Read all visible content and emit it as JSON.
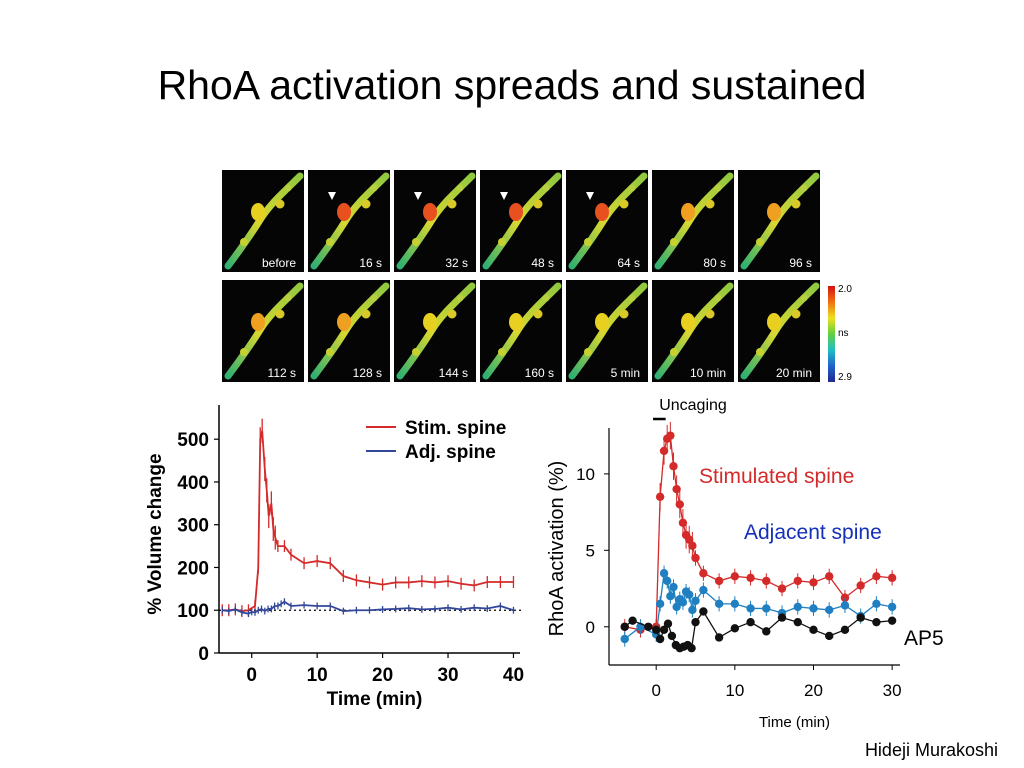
{
  "title": "RhoA activation spreads and sustained",
  "image_panels": {
    "row1": [
      "before",
      "16 s",
      "32 s",
      "48 s",
      "64 s",
      "80 s",
      "96 s"
    ],
    "row2": [
      "112 s",
      "128 s",
      "144 s",
      "160 s",
      "5 min",
      "10 min",
      "20 min"
    ],
    "arrowheads_on": [
      "16 s",
      "32 s",
      "48 s",
      "64 s"
    ],
    "colorbar": {
      "top": "2.0",
      "middle": "ns",
      "bottom": "2.9"
    }
  },
  "chart_data": [
    {
      "type": "line",
      "xlabel": "Time (min)",
      "ylabel": "% Volume change",
      "xlim": [
        -5,
        41
      ],
      "ylim": [
        0,
        580
      ],
      "xticks": [
        0,
        10,
        20,
        30,
        40
      ],
      "yticks": [
        0,
        100,
        200,
        300,
        400,
        500
      ],
      "reference_line": 100,
      "legend_position": "top-right",
      "series": [
        {
          "name": "Stim. spine",
          "color": "#d42a2a",
          "x": [
            -4.5,
            -3.5,
            -2.5,
            -1.5,
            -0.5,
            0.5,
            1.0,
            1.3,
            1.6,
            2.0,
            2.3,
            2.6,
            3.0,
            3.3,
            3.6,
            4.0,
            5.0,
            6.0,
            8.0,
            10.0,
            12.0,
            14.0,
            16.0,
            18.0,
            20.0,
            22.0,
            24.0,
            26.0,
            28.0,
            30.0,
            32.0,
            34.0,
            36.0,
            38.0,
            40.0
          ],
          "y": [
            100,
            100,
            102,
            98,
            100,
            110,
            200,
            500,
            520,
            430,
            380,
            320,
            350,
            290,
            270,
            250,
            250,
            230,
            210,
            215,
            210,
            180,
            170,
            165,
            160,
            165,
            165,
            168,
            165,
            168,
            162,
            158,
            166,
            166,
            166
          ]
        },
        {
          "name": "Adj. spine",
          "color": "#33479a",
          "x": [
            -4.5,
            -3.5,
            -2.5,
            -1.5,
            -0.5,
            0.0,
            0.5,
            1.0,
            1.5,
            2.0,
            2.5,
            3.0,
            3.5,
            4.0,
            4.5,
            5.0,
            6.0,
            8.0,
            10.0,
            12.0,
            14.0,
            16.0,
            18.0,
            20.0,
            22.0,
            24.0,
            26.0,
            28.0,
            30.0,
            32.0,
            34.0,
            36.0,
            38.0,
            40.0
          ],
          "y": [
            100,
            98,
            102,
            95,
            92,
            96,
            95,
            100,
            103,
            98,
            103,
            103,
            110,
            110,
            115,
            120,
            110,
            112,
            110,
            110,
            98,
            100,
            100,
            102,
            103,
            105,
            102,
            103,
            106,
            102,
            106,
            104,
            110,
            100
          ]
        }
      ]
    },
    {
      "type": "line",
      "xlabel": "Time (min)",
      "ylabel": "RhoA activation (%)",
      "xlim": [
        -6,
        31
      ],
      "ylim": [
        -2.5,
        13
      ],
      "xticks": [
        0,
        10,
        20,
        30
      ],
      "yticks": [
        0,
        5,
        10
      ],
      "uncaging_label": "Uncaging",
      "series": [
        {
          "name": "Stimulated spine",
          "color": "#d42a2a",
          "x": [
            -4,
            -2,
            0,
            0.5,
            1.0,
            1.4,
            1.8,
            2.2,
            2.6,
            3.0,
            3.4,
            3.8,
            4.2,
            4.6,
            5.0,
            6.0,
            8.0,
            10.0,
            12.0,
            14.0,
            16.0,
            18.0,
            20.0,
            22.0,
            24.0,
            26.0,
            28.0,
            30.0
          ],
          "y": [
            0,
            -0.2,
            0,
            8.5,
            11.5,
            12.3,
            12.5,
            10.5,
            9.0,
            8.0,
            6.8,
            6.0,
            5.7,
            5.3,
            4.5,
            3.5,
            3.0,
            3.3,
            3.2,
            3.0,
            2.5,
            3.0,
            2.9,
            3.3,
            1.9,
            2.7,
            3.3,
            3.2
          ]
        },
        {
          "name": "Adjacent spine",
          "color": "#1f7fc0",
          "x": [
            -4,
            -2,
            0,
            0.5,
            1.0,
            1.4,
            1.8,
            2.2,
            2.6,
            3.0,
            3.4,
            3.8,
            4.2,
            4.6,
            5.0,
            6.0,
            8.0,
            10.0,
            12.0,
            14.0,
            16.0,
            18.0,
            20.0,
            22.0,
            24.0,
            26.0,
            28.0,
            30.0
          ],
          "y": [
            -0.8,
            0,
            -0.5,
            1.5,
            3.5,
            3.0,
            2.0,
            2.6,
            1.3,
            1.8,
            1.6,
            2.3,
            2.1,
            1.1,
            1.7,
            2.4,
            1.5,
            1.5,
            1.2,
            1.2,
            0.9,
            1.3,
            1.2,
            1.1,
            1.4,
            0.7,
            1.5,
            1.3
          ]
        },
        {
          "name": "AP5",
          "color": "#111111",
          "x": [
            -4,
            -3,
            -1,
            0,
            0.5,
            1.0,
            1.5,
            2.0,
            2.5,
            3.0,
            3.5,
            4.0,
            4.5,
            5.0,
            6.0,
            8.0,
            10.0,
            12.0,
            14.0,
            16.0,
            18.0,
            20.0,
            22.0,
            24.0,
            26.0,
            28.0,
            30.0
          ],
          "y": [
            0,
            0.4,
            0.0,
            -0.2,
            -0.8,
            -0.2,
            0.2,
            -0.6,
            -1.2,
            -1.4,
            -1.3,
            -1.2,
            -1.4,
            0.3,
            1.0,
            -0.7,
            -0.1,
            0.3,
            -0.3,
            0.6,
            0.3,
            -0.2,
            -0.6,
            -0.2,
            0.6,
            0.3,
            0.4
          ]
        }
      ]
    }
  ],
  "footer": "Hideji Murakoshi"
}
